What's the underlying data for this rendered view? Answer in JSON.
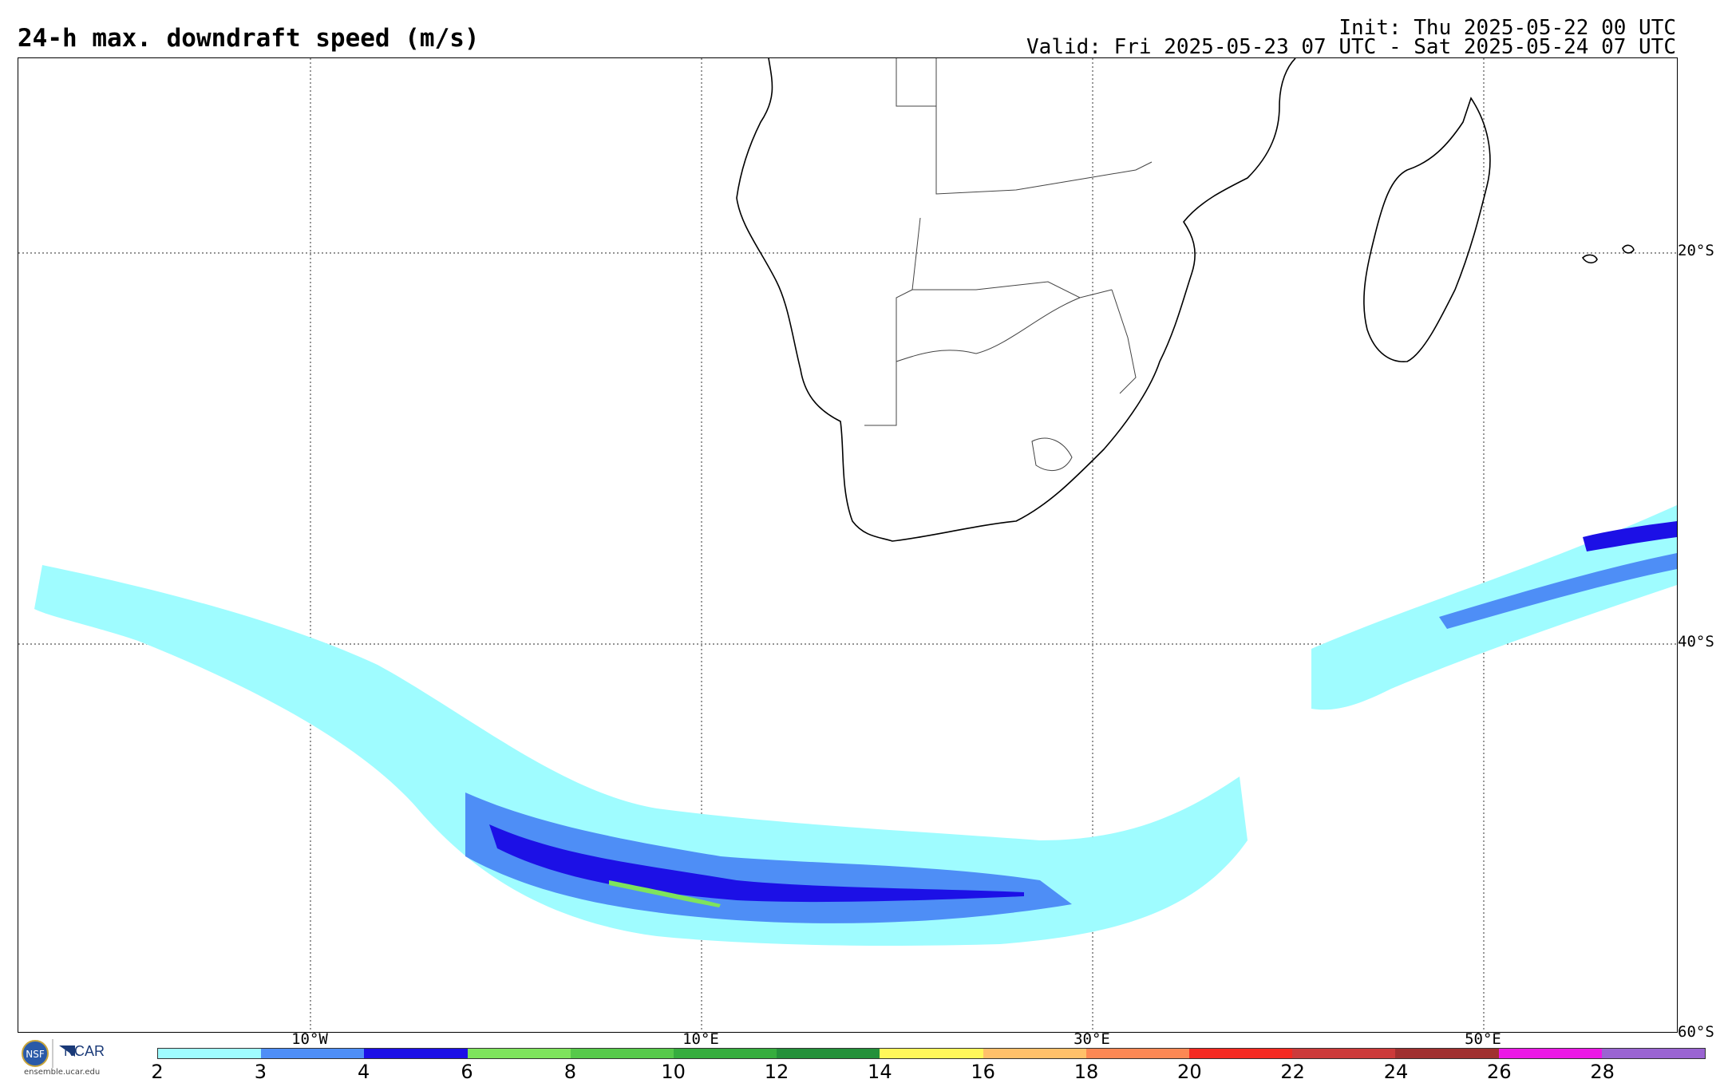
{
  "header": {
    "title": "24-h max. downdraft speed (m/s)",
    "init": "Init: Thu 2025-05-22 00 UTC",
    "valid": "Valid: Fri 2025-05-23 07 UTC - Sat 2025-05-24 07 UTC"
  },
  "map": {
    "lat_labels": [
      "20°S",
      "40°S",
      "60°S"
    ],
    "lon_labels": [
      "10°W",
      "10°E",
      "30°E",
      "50°E"
    ],
    "graticule": "dotted"
  },
  "colorbar": {
    "ticks": [
      "2",
      "3",
      "4",
      "6",
      "8",
      "10",
      "12",
      "14",
      "16",
      "18",
      "20",
      "22",
      "24",
      "26",
      "28"
    ],
    "colors": [
      "#9ffcff",
      "#4e8ef6",
      "#1c10e6",
      "#7ee35c",
      "#56c94a",
      "#36ad3e",
      "#24903a",
      "#fff75a",
      "#ffc06a",
      "#fc8854",
      "#f42a22",
      "#cc3b3b",
      "#a03030",
      "#ec18e6",
      "#9a64d2"
    ]
  },
  "branding": {
    "logo": "NCAR",
    "url": "ensemble.ucar.edu"
  }
}
